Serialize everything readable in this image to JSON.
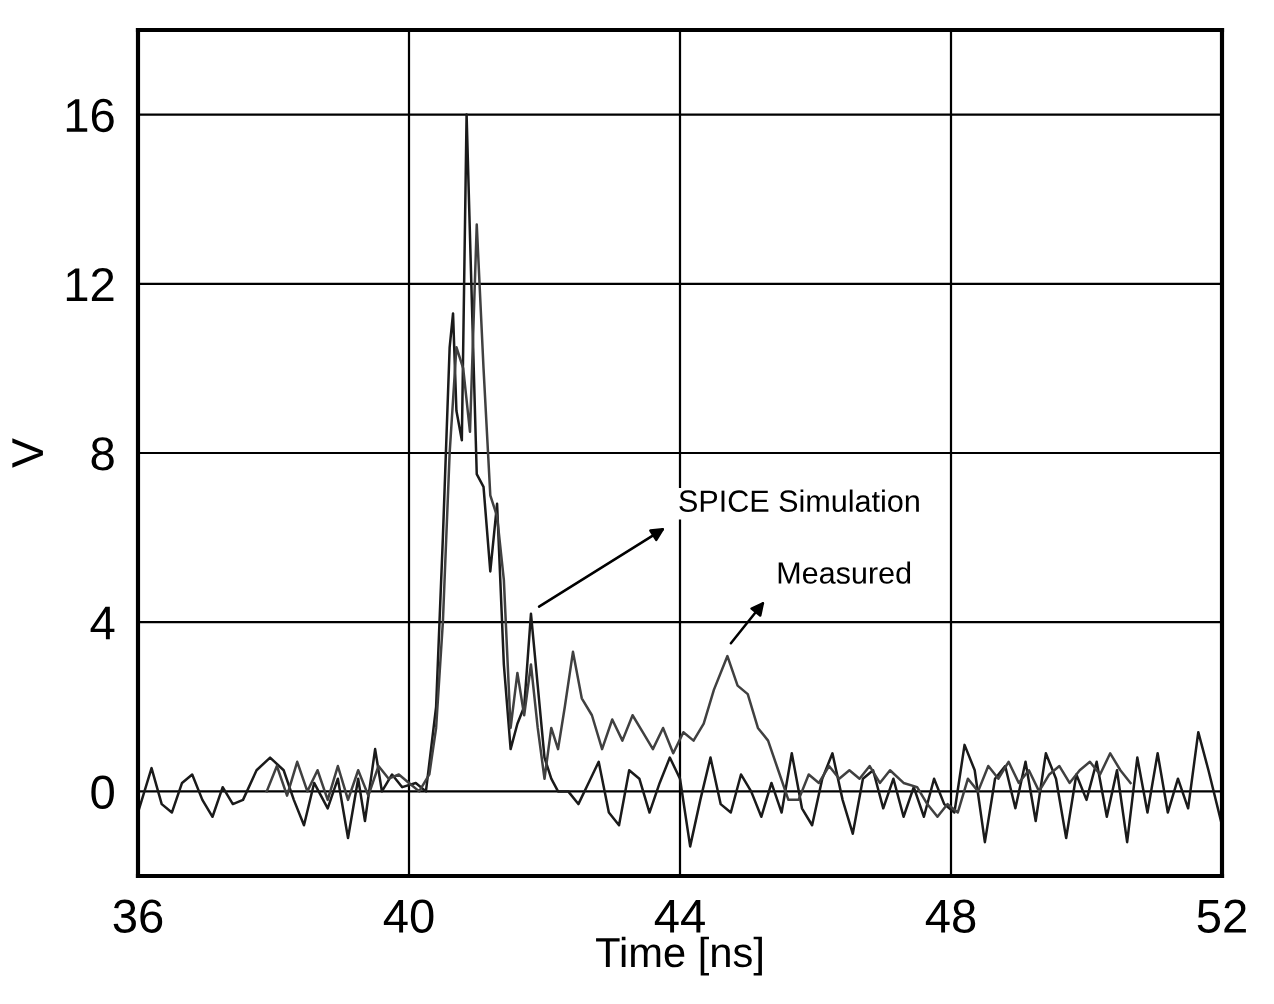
{
  "chart_data": {
    "type": "line",
    "xlabel": "Time [ns]",
    "ylabel": "V",
    "xlim": [
      36,
      52
    ],
    "ylim": [
      -2,
      18
    ],
    "xticks": [
      36,
      40,
      44,
      48,
      52
    ],
    "yticks": [
      0,
      4,
      8,
      12,
      16
    ],
    "grid": true,
    "marker": "none",
    "line_style": "solid",
    "series": [
      {
        "color": "#1a1a1a",
        "x": [
          36.0,
          36.2,
          36.35,
          36.5,
          36.65,
          36.8,
          36.95,
          37.1,
          37.25,
          37.4,
          37.55,
          37.75,
          37.95,
          38.15,
          38.3,
          38.45,
          38.6,
          38.8,
          38.95,
          39.1,
          39.25,
          39.35,
          39.5,
          39.6,
          39.75,
          39.9,
          40.1,
          40.25,
          40.4,
          40.5,
          40.6,
          40.65,
          40.7,
          40.78,
          40.85,
          40.92,
          41.0,
          41.1,
          41.2,
          41.3,
          41.4,
          41.5,
          41.6,
          41.7,
          41.8,
          41.9,
          42.0,
          42.1,
          42.2,
          42.35,
          42.5,
          42.65,
          42.8,
          42.95,
          43.1,
          43.25,
          43.4,
          43.55,
          43.7,
          43.85,
          44.0,
          44.15,
          44.3,
          44.45,
          44.6,
          44.75,
          44.9,
          45.05,
          45.2,
          45.35,
          45.5,
          45.65,
          45.8,
          45.95,
          46.1,
          46.25,
          46.4,
          46.55,
          46.7,
          46.85,
          47.0,
          47.15,
          47.3,
          47.45,
          47.6,
          47.75,
          47.9,
          48.05,
          48.2,
          48.35,
          48.5,
          48.65,
          48.8,
          48.95,
          49.1,
          49.25,
          49.4,
          49.55,
          49.7,
          49.85,
          50.0,
          50.15,
          50.3,
          50.45,
          50.6,
          50.75,
          50.9,
          51.05,
          51.2,
          51.35,
          51.5,
          51.65,
          51.8,
          52.0
        ],
        "values": [
          -0.5,
          0.55,
          -0.3,
          -0.5,
          0.2,
          0.4,
          -0.2,
          -0.6,
          0.1,
          -0.3,
          -0.2,
          0.5,
          0.8,
          0.5,
          -0.2,
          -0.8,
          0.2,
          -0.4,
          0.3,
          -1.1,
          0.3,
          -0.7,
          1.0,
          0.0,
          0.4,
          0.1,
          0.2,
          0.0,
          2,
          6,
          10.5,
          11.3,
          9,
          8.3,
          16,
          12,
          7.5,
          7.2,
          5.2,
          6.8,
          3,
          1,
          1.6,
          2,
          4.2,
          2.5,
          0.8,
          0.3,
          0,
          0.0,
          -0.3,
          0.2,
          0.7,
          -0.5,
          -0.8,
          0.5,
          0.3,
          -0.5,
          0.2,
          0.8,
          0.3,
          -1.3,
          -0.2,
          0.8,
          -0.3,
          -0.5,
          0.4,
          0.0,
          -0.6,
          0.2,
          -0.5,
          0.9,
          -0.4,
          -0.8,
          0.3,
          0.9,
          -0.2,
          -1.0,
          0.3,
          0.5,
          -0.4,
          0.3,
          -0.6,
          0.1,
          -0.6,
          0.3,
          -0.3,
          -0.5,
          1.1,
          0.5,
          -1.2,
          0.3,
          0.6,
          -0.4,
          0.7,
          -0.7,
          0.9,
          0.3,
          -1.1,
          0.4,
          -0.2,
          0.7,
          -0.6,
          0.5,
          -1.2,
          0.8,
          -0.5,
          0.9,
          -0.5,
          0.3,
          -0.4,
          1.4,
          0.5,
          -0.8
        ]
      },
      {
        "color": "#404040",
        "x": [
          37.9,
          38.05,
          38.2,
          38.35,
          38.5,
          38.65,
          38.8,
          38.95,
          39.1,
          39.25,
          39.4,
          39.55,
          39.7,
          39.85,
          40.0,
          40.15,
          40.3,
          40.4,
          40.5,
          40.6,
          40.7,
          40.8,
          40.9,
          41.0,
          41.1,
          41.2,
          41.3,
          41.4,
          41.5,
          41.6,
          41.7,
          41.8,
          41.9,
          42.0,
          42.1,
          42.2,
          42.3,
          42.42,
          42.55,
          42.7,
          42.85,
          43.0,
          43.15,
          43.3,
          43.45,
          43.6,
          43.75,
          43.9,
          44.05,
          44.2,
          44.35,
          44.5,
          44.7,
          44.85,
          45.0,
          45.15,
          45.3,
          45.45,
          45.6,
          45.75,
          45.9,
          46.05,
          46.2,
          46.35,
          46.5,
          46.65,
          46.8,
          46.95,
          47.1,
          47.3,
          47.5,
          47.65,
          47.8,
          47.95,
          48.1,
          48.25,
          48.4,
          48.55,
          48.7,
          48.85,
          49.0,
          49.15,
          49.3,
          49.45,
          49.6,
          49.75,
          49.9,
          50.05,
          50.2,
          50.35,
          50.5,
          50.65
        ],
        "values": [
          0.0,
          0.6,
          -0.1,
          0.7,
          0.0,
          0.5,
          -0.2,
          0.6,
          -0.2,
          0.5,
          -0.1,
          0.6,
          0.3,
          0.4,
          0.2,
          0.0,
          0.4,
          1.5,
          4,
          8,
          10.5,
          10.0,
          8.5,
          13.4,
          10,
          7,
          6.5,
          5,
          1.5,
          2.8,
          1.8,
          3.0,
          1.5,
          0.3,
          1.5,
          1.0,
          2.0,
          3.3,
          2.2,
          1.8,
          1.0,
          1.7,
          1.2,
          1.8,
          1.4,
          1.0,
          1.5,
          0.9,
          1.4,
          1.2,
          1.6,
          2.4,
          3.2,
          2.5,
          2.3,
          1.5,
          1.2,
          0.5,
          -0.2,
          -0.2,
          0.4,
          0.2,
          0.6,
          0.3,
          0.5,
          0.3,
          0.6,
          0.2,
          0.5,
          0.2,
          0.1,
          -0.3,
          -0.6,
          -0.3,
          -0.5,
          0.3,
          0.0,
          0.6,
          0.3,
          0.7,
          0.2,
          0.5,
          0.0,
          0.4,
          0.6,
          0.2,
          0.5,
          0.7,
          0.4,
          0.9,
          0.5,
          0.2
        ]
      }
    ],
    "annotations": [
      {
        "text": "SPICE Simulation",
        "x": 41.85,
        "y": 4.3
      },
      {
        "text": "Measured",
        "x": 44.7,
        "y": 3.4
      }
    ]
  }
}
